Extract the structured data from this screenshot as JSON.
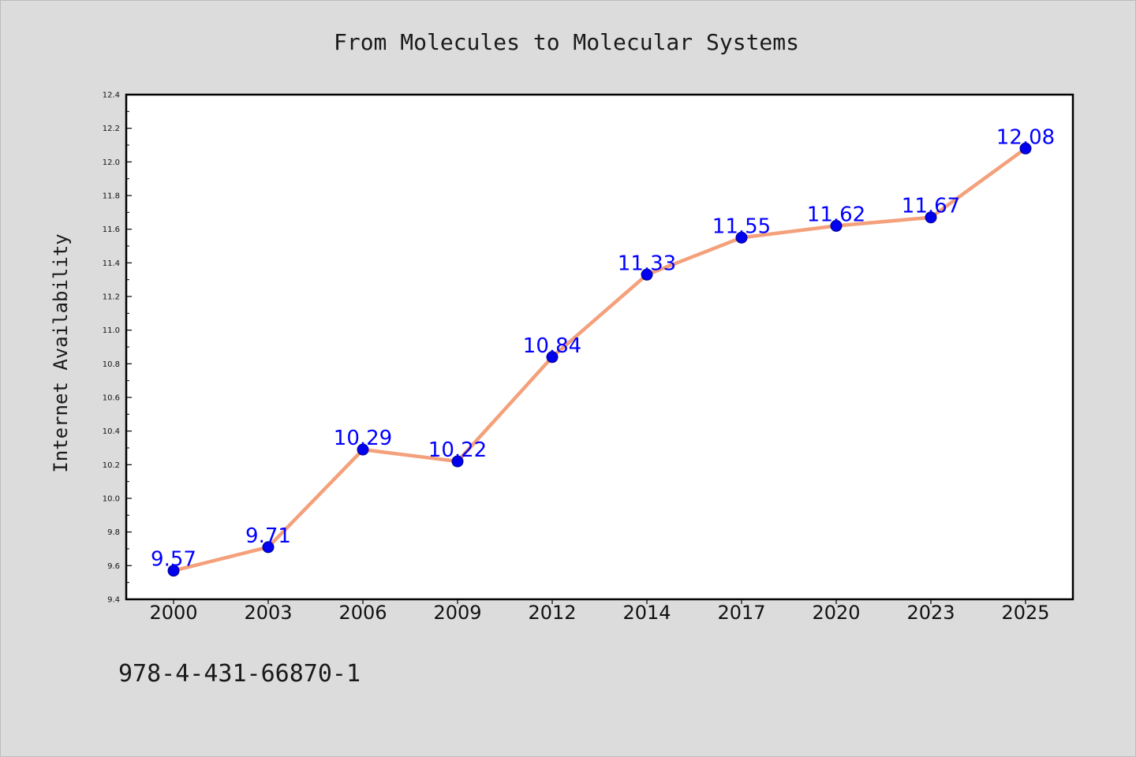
{
  "chart_data": {
    "type": "line",
    "title": "From Molecules to Molecular Systems",
    "xlabel": "",
    "ylabel": "Internet Availability",
    "categories": [
      "2000",
      "2003",
      "2006",
      "2009",
      "2012",
      "2014",
      "2017",
      "2020",
      "2023",
      "2025"
    ],
    "series": [
      {
        "values": [
          9.57,
          9.71,
          10.29,
          10.22,
          10.84,
          11.33,
          11.55,
          11.62,
          11.67,
          12.08
        ],
        "line_color": "#f4a07a",
        "marker_color": "#0000ee",
        "label_color": "#0000ff"
      }
    ],
    "data_labels": [
      "9.57",
      "9.71",
      "10.29",
      "10.22",
      "10.84",
      "11.33",
      "11.55",
      "11.62",
      "11.67",
      "12.08"
    ],
    "ylim": [
      9.4,
      12.4
    ],
    "yticks": [
      "9.4",
      "9.6",
      "9.8",
      "10.0",
      "10.2",
      "10.4",
      "10.6",
      "10.8",
      "11.0",
      "11.2",
      "11.4",
      "11.6",
      "11.8",
      "12.0",
      "12.2",
      "12.4"
    ],
    "grid": false,
    "legend": "none"
  },
  "footer": {
    "isbn": "978-4-431-66870-1"
  },
  "colors": {
    "background": "#dcdcdc",
    "plot_background": "#ffffff",
    "axis": "#000000"
  }
}
